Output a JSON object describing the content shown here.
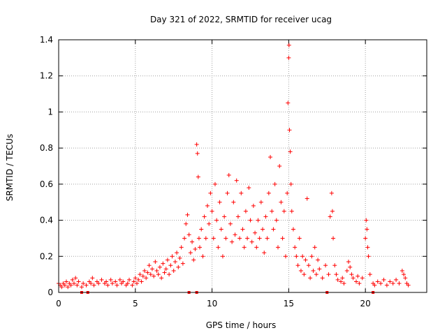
{
  "chart_data": {
    "type": "scatter",
    "title": "Day 321 of 2022, SRMTID for receiver ucag",
    "xlabel": "GPS time / hours",
    "ylabel": "SRMTID / TECUs",
    "xlim": [
      0,
      24
    ],
    "ylim": [
      0,
      1.4
    ],
    "xticks": [
      "0",
      "5",
      "10",
      "15",
      "20"
    ],
    "xtick_values": [
      0,
      5,
      10,
      15,
      20
    ],
    "yticks": [
      "0",
      "0.2",
      "0.4",
      "0.6",
      "0.8",
      "1",
      "1.2",
      "1.4"
    ],
    "ytick_values": [
      0,
      0.2,
      0.4,
      0.6,
      0.8,
      1.0,
      1.2,
      1.4
    ],
    "grid": true,
    "marker": "+",
    "series_color": "#ff0000",
    "series": [
      {
        "name": "SRMTID",
        "points": [
          [
            0.0,
            0.05
          ],
          [
            0.1,
            0.04
          ],
          [
            0.2,
            0.03
          ],
          [
            0.3,
            0.05
          ],
          [
            0.4,
            0.04
          ],
          [
            0.5,
            0.06
          ],
          [
            0.6,
            0.03
          ],
          [
            0.7,
            0.05
          ],
          [
            0.8,
            0.04
          ],
          [
            0.9,
            0.07
          ],
          [
            1.0,
            0.05
          ],
          [
            1.1,
            0.08
          ],
          [
            1.2,
            0.04
          ],
          [
            1.3,
            0.06
          ],
          [
            1.5,
            0.03
          ],
          [
            1.6,
            0.05
          ],
          [
            1.8,
            0.04
          ],
          [
            2.0,
            0.06
          ],
          [
            2.1,
            0.05
          ],
          [
            2.2,
            0.08
          ],
          [
            2.3,
            0.04
          ],
          [
            2.5,
            0.06
          ],
          [
            2.6,
            0.05
          ],
          [
            2.8,
            0.07
          ],
          [
            3.0,
            0.05
          ],
          [
            3.1,
            0.06
          ],
          [
            3.2,
            0.04
          ],
          [
            3.4,
            0.07
          ],
          [
            3.5,
            0.05
          ],
          [
            3.7,
            0.06
          ],
          [
            3.8,
            0.04
          ],
          [
            4.0,
            0.07
          ],
          [
            4.1,
            0.05
          ],
          [
            4.2,
            0.06
          ],
          [
            4.4,
            0.04
          ],
          [
            4.5,
            0.05
          ],
          [
            4.6,
            0.07
          ],
          [
            4.8,
            0.04
          ],
          [
            4.9,
            0.06
          ],
          [
            5.0,
            0.08
          ],
          [
            5.1,
            0.05
          ],
          [
            5.2,
            0.07
          ],
          [
            5.3,
            0.1
          ],
          [
            5.4,
            0.06
          ],
          [
            5.5,
            0.09
          ],
          [
            5.6,
            0.12
          ],
          [
            5.7,
            0.08
          ],
          [
            5.8,
            0.11
          ],
          [
            5.9,
            0.15
          ],
          [
            6.0,
            0.1
          ],
          [
            6.1,
            0.13
          ],
          [
            6.2,
            0.09
          ],
          [
            6.3,
            0.17
          ],
          [
            6.4,
            0.12
          ],
          [
            6.5,
            0.1
          ],
          [
            6.6,
            0.14
          ],
          [
            6.7,
            0.08
          ],
          [
            6.8,
            0.16
          ],
          [
            6.9,
            0.11
          ],
          [
            7.0,
            0.13
          ],
          [
            7.1,
            0.18
          ],
          [
            7.2,
            0.1
          ],
          [
            7.3,
            0.15
          ],
          [
            7.4,
            0.2
          ],
          [
            7.5,
            0.12
          ],
          [
            7.6,
            0.17
          ],
          [
            7.7,
            0.22
          ],
          [
            7.8,
            0.14
          ],
          [
            7.9,
            0.19
          ],
          [
            8.0,
            0.25
          ],
          [
            8.1,
            0.16
          ],
          [
            8.2,
            0.3
          ],
          [
            8.3,
            0.38
          ],
          [
            8.4,
            0.43
          ],
          [
            8.5,
            0.32
          ],
          [
            8.6,
            0.22
          ],
          [
            8.7,
            0.28
          ],
          [
            8.8,
            0.18
          ],
          [
            8.9,
            0.24
          ],
          [
            9.0,
            0.82
          ],
          [
            9.05,
            0.77
          ],
          [
            9.1,
            0.64
          ],
          [
            9.15,
            0.3
          ],
          [
            9.2,
            0.25
          ],
          [
            9.3,
            0.35
          ],
          [
            9.4,
            0.2
          ],
          [
            9.5,
            0.42
          ],
          [
            9.6,
            0.3
          ],
          [
            9.7,
            0.48
          ],
          [
            9.8,
            0.38
          ],
          [
            9.9,
            0.55
          ],
          [
            10.0,
            0.45
          ],
          [
            10.1,
            0.3
          ],
          [
            10.2,
            0.6
          ],
          [
            10.3,
            0.4
          ],
          [
            10.4,
            0.25
          ],
          [
            10.5,
            0.5
          ],
          [
            10.6,
            0.35
          ],
          [
            10.7,
            0.2
          ],
          [
            10.8,
            0.42
          ],
          [
            10.9,
            0.3
          ],
          [
            11.0,
            0.55
          ],
          [
            11.1,
            0.65
          ],
          [
            11.2,
            0.38
          ],
          [
            11.3,
            0.28
          ],
          [
            11.4,
            0.5
          ],
          [
            11.5,
            0.32
          ],
          [
            11.6,
            0.62
          ],
          [
            11.7,
            0.42
          ],
          [
            11.8,
            0.3
          ],
          [
            11.9,
            0.55
          ],
          [
            12.0,
            0.35
          ],
          [
            12.1,
            0.25
          ],
          [
            12.2,
            0.45
          ],
          [
            12.3,
            0.3
          ],
          [
            12.4,
            0.58
          ],
          [
            12.5,
            0.4
          ],
          [
            12.6,
            0.28
          ],
          [
            12.7,
            0.48
          ],
          [
            12.8,
            0.33
          ],
          [
            12.9,
            0.25
          ],
          [
            13.0,
            0.4
          ],
          [
            13.1,
            0.3
          ],
          [
            13.2,
            0.5
          ],
          [
            13.3,
            0.35
          ],
          [
            13.4,
            0.22
          ],
          [
            13.5,
            0.42
          ],
          [
            13.6,
            0.3
          ],
          [
            13.7,
            0.55
          ],
          [
            13.8,
            0.75
          ],
          [
            13.9,
            0.45
          ],
          [
            14.0,
            0.35
          ],
          [
            14.1,
            0.6
          ],
          [
            14.2,
            0.4
          ],
          [
            14.3,
            0.25
          ],
          [
            14.4,
            0.7
          ],
          [
            14.5,
            0.5
          ],
          [
            14.6,
            0.3
          ],
          [
            14.7,
            0.45
          ],
          [
            14.8,
            0.2
          ],
          [
            14.9,
            0.55
          ],
          [
            14.95,
            1.05
          ],
          [
            15.0,
            1.3
          ],
          [
            15.02,
            1.37
          ],
          [
            15.05,
            0.9
          ],
          [
            15.1,
            0.78
          ],
          [
            15.15,
            0.6
          ],
          [
            15.2,
            0.45
          ],
          [
            15.3,
            0.35
          ],
          [
            15.4,
            0.25
          ],
          [
            15.5,
            0.2
          ],
          [
            15.6,
            0.15
          ],
          [
            15.7,
            0.3
          ],
          [
            15.8,
            0.12
          ],
          [
            15.9,
            0.2
          ],
          [
            16.0,
            0.1
          ],
          [
            16.1,
            0.18
          ],
          [
            16.2,
            0.52
          ],
          [
            16.3,
            0.15
          ],
          [
            16.4,
            0.08
          ],
          [
            16.5,
            0.2
          ],
          [
            16.6,
            0.12
          ],
          [
            16.7,
            0.25
          ],
          [
            16.8,
            0.1
          ],
          [
            16.9,
            0.18
          ],
          [
            17.0,
            0.13
          ],
          [
            17.2,
            0.08
          ],
          [
            17.4,
            0.15
          ],
          [
            17.6,
            0.1
          ],
          [
            17.7,
            0.42
          ],
          [
            17.8,
            0.55
          ],
          [
            17.85,
            0.45
          ],
          [
            17.9,
            0.3
          ],
          [
            18.0,
            0.15
          ],
          [
            18.1,
            0.1
          ],
          [
            18.2,
            0.07
          ],
          [
            18.4,
            0.06
          ],
          [
            18.5,
            0.08
          ],
          [
            18.6,
            0.05
          ],
          [
            18.8,
            0.12
          ],
          [
            18.9,
            0.17
          ],
          [
            19.0,
            0.14
          ],
          [
            19.1,
            0.1
          ],
          [
            19.2,
            0.08
          ],
          [
            19.4,
            0.06
          ],
          [
            19.5,
            0.09
          ],
          [
            19.6,
            0.05
          ],
          [
            19.8,
            0.08
          ],
          [
            20.0,
            0.3
          ],
          [
            20.05,
            0.4
          ],
          [
            20.1,
            0.35
          ],
          [
            20.15,
            0.25
          ],
          [
            20.2,
            0.2
          ],
          [
            20.3,
            0.1
          ],
          [
            20.5,
            0.05
          ],
          [
            20.6,
            0.04
          ],
          [
            20.8,
            0.06
          ],
          [
            21.0,
            0.05
          ],
          [
            21.2,
            0.07
          ],
          [
            21.4,
            0.04
          ],
          [
            21.6,
            0.06
          ],
          [
            21.8,
            0.05
          ],
          [
            22.0,
            0.07
          ],
          [
            22.2,
            0.05
          ],
          [
            22.4,
            0.12
          ],
          [
            22.5,
            0.1
          ],
          [
            22.6,
            0.08
          ],
          [
            22.7,
            0.05
          ],
          [
            22.8,
            0.04
          ]
        ]
      }
    ],
    "axis_markers": [
      1.5,
      1.9,
      8.5,
      9.0,
      17.5,
      20.5
    ]
  }
}
